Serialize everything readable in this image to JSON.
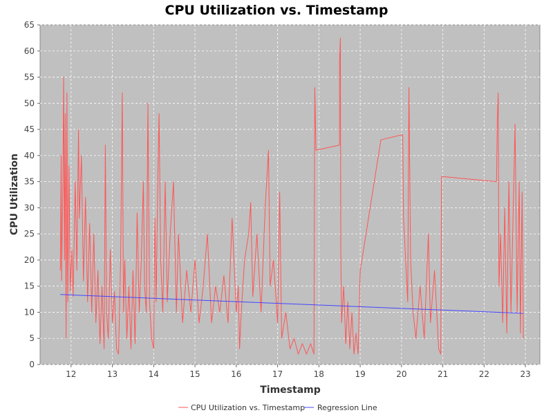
{
  "chart_data": {
    "type": "line",
    "title": "CPU Utilization vs. Timestamp",
    "xlabel": "Timestamp",
    "ylabel": "CPU Utilization",
    "xlim": [
      11.25,
      23.35
    ],
    "ylim": [
      0,
      65
    ],
    "x_ticks": [
      "12",
      "13",
      "14",
      "15",
      "16",
      "17",
      "18",
      "19",
      "20",
      "21",
      "22",
      "23"
    ],
    "y_ticks": [
      "0",
      "5",
      "10",
      "15",
      "20",
      "25",
      "30",
      "35",
      "40",
      "45",
      "50",
      "55",
      "60",
      "65"
    ],
    "grid": true,
    "plot_background": "#c0c0c0",
    "grid_color": "#ffffff",
    "legend": {
      "position": "bottom"
    },
    "series": [
      {
        "name": "CPU Utilization vs. Timestamp",
        "color": "#ff5555",
        "points": [
          [
            11.74,
            18
          ],
          [
            11.76,
            40
          ],
          [
            11.77,
            16
          ],
          [
            11.8,
            34
          ],
          [
            11.82,
            55
          ],
          [
            11.84,
            20
          ],
          [
            11.86,
            48
          ],
          [
            11.88,
            5
          ],
          [
            11.9,
            52
          ],
          [
            11.92,
            12
          ],
          [
            11.95,
            38
          ],
          [
            11.98,
            14
          ],
          [
            12.02,
            22
          ],
          [
            12.05,
            13
          ],
          [
            12.1,
            35
          ],
          [
            12.14,
            18
          ],
          [
            12.18,
            45
          ],
          [
            12.2,
            28
          ],
          [
            12.25,
            40
          ],
          [
            12.3,
            16
          ],
          [
            12.35,
            32
          ],
          [
            12.4,
            12
          ],
          [
            12.45,
            27
          ],
          [
            12.5,
            10
          ],
          [
            12.55,
            25
          ],
          [
            12.6,
            8
          ],
          [
            12.65,
            18
          ],
          [
            12.7,
            4
          ],
          [
            12.75,
            15
          ],
          [
            12.8,
            3
          ],
          [
            12.83,
            42
          ],
          [
            12.86,
            10
          ],
          [
            12.9,
            5
          ],
          [
            12.95,
            22
          ],
          [
            13.0,
            8
          ],
          [
            13.05,
            14
          ],
          [
            13.1,
            3
          ],
          [
            13.15,
            2
          ],
          [
            13.2,
            20
          ],
          [
            13.24,
            52
          ],
          [
            13.27,
            10
          ],
          [
            13.3,
            20
          ],
          [
            13.35,
            5
          ],
          [
            13.4,
            15
          ],
          [
            13.45,
            3
          ],
          [
            13.5,
            18
          ],
          [
            13.55,
            4
          ],
          [
            13.6,
            29
          ],
          [
            13.65,
            10
          ],
          [
            13.7,
            20
          ],
          [
            13.75,
            35
          ],
          [
            13.78,
            15
          ],
          [
            13.82,
            10
          ],
          [
            13.86,
            50
          ],
          [
            13.9,
            12
          ],
          [
            13.95,
            5
          ],
          [
            14.0,
            3
          ],
          [
            14.03,
            28
          ],
          [
            14.06,
            12
          ],
          [
            14.1,
            35
          ],
          [
            14.13,
            48
          ],
          [
            14.17,
            20
          ],
          [
            14.22,
            10
          ],
          [
            14.28,
            35
          ],
          [
            14.33,
            12
          ],
          [
            14.4,
            25
          ],
          [
            14.48,
            35
          ],
          [
            14.55,
            10
          ],
          [
            14.6,
            25
          ],
          [
            14.7,
            8
          ],
          [
            14.8,
            18
          ],
          [
            14.9,
            10
          ],
          [
            15.0,
            20
          ],
          [
            15.1,
            8
          ],
          [
            15.2,
            15
          ],
          [
            15.3,
            25
          ],
          [
            15.4,
            8
          ],
          [
            15.5,
            15
          ],
          [
            15.6,
            10
          ],
          [
            15.7,
            17
          ],
          [
            15.8,
            8
          ],
          [
            15.9,
            28
          ],
          [
            16.0,
            10
          ],
          [
            16.05,
            15
          ],
          [
            16.08,
            3
          ],
          [
            16.12,
            10
          ],
          [
            16.2,
            20
          ],
          [
            16.3,
            25
          ],
          [
            16.35,
            31
          ],
          [
            16.4,
            13
          ],
          [
            16.5,
            25
          ],
          [
            16.6,
            10
          ],
          [
            16.7,
            30
          ],
          [
            16.78,
            41
          ],
          [
            16.82,
            15
          ],
          [
            16.9,
            20
          ],
          [
            17.0,
            8
          ],
          [
            17.05,
            33
          ],
          [
            17.1,
            5
          ],
          [
            17.2,
            10
          ],
          [
            17.3,
            3
          ],
          [
            17.4,
            5
          ],
          [
            17.5,
            2
          ],
          [
            17.6,
            4
          ],
          [
            17.7,
            2
          ],
          [
            17.8,
            4
          ],
          [
            17.88,
            2
          ],
          [
            17.9,
            53
          ],
          [
            17.93,
            41
          ],
          [
            18.5,
            42
          ],
          [
            18.5,
            58
          ],
          [
            18.52,
            62.5
          ],
          [
            18.53,
            22
          ],
          [
            18.55,
            8
          ],
          [
            18.6,
            15
          ],
          [
            18.65,
            4
          ],
          [
            18.7,
            12
          ],
          [
            18.75,
            3
          ],
          [
            18.8,
            10
          ],
          [
            18.85,
            2
          ],
          [
            18.9,
            6
          ],
          [
            18.95,
            2
          ],
          [
            19.0,
            18
          ],
          [
            19.5,
            43
          ],
          [
            20.03,
            44
          ],
          [
            20.05,
            28
          ],
          [
            20.1,
            20
          ],
          [
            20.15,
            12
          ],
          [
            20.18,
            53
          ],
          [
            20.22,
            20
          ],
          [
            20.28,
            10
          ],
          [
            20.35,
            5
          ],
          [
            20.45,
            15
          ],
          [
            20.55,
            5
          ],
          [
            20.65,
            25
          ],
          [
            20.7,
            8
          ],
          [
            20.8,
            18
          ],
          [
            20.9,
            3
          ],
          [
            20.95,
            2
          ],
          [
            20.97,
            36
          ],
          [
            22.3,
            35
          ],
          [
            22.32,
            47
          ],
          [
            22.34,
            52
          ],
          [
            22.36,
            15
          ],
          [
            22.4,
            25
          ],
          [
            22.45,
            8
          ],
          [
            22.5,
            30
          ],
          [
            22.55,
            6
          ],
          [
            22.6,
            35
          ],
          [
            22.65,
            10
          ],
          [
            22.7,
            28
          ],
          [
            22.75,
            46
          ],
          [
            22.8,
            10
          ],
          [
            22.85,
            35
          ],
          [
            22.88,
            6
          ],
          [
            22.92,
            33
          ],
          [
            22.95,
            5
          ]
        ]
      },
      {
        "name": "Regression Line",
        "color": "#4444ff",
        "points": [
          [
            11.74,
            13.4
          ],
          [
            22.95,
            9.8
          ]
        ]
      }
    ]
  }
}
